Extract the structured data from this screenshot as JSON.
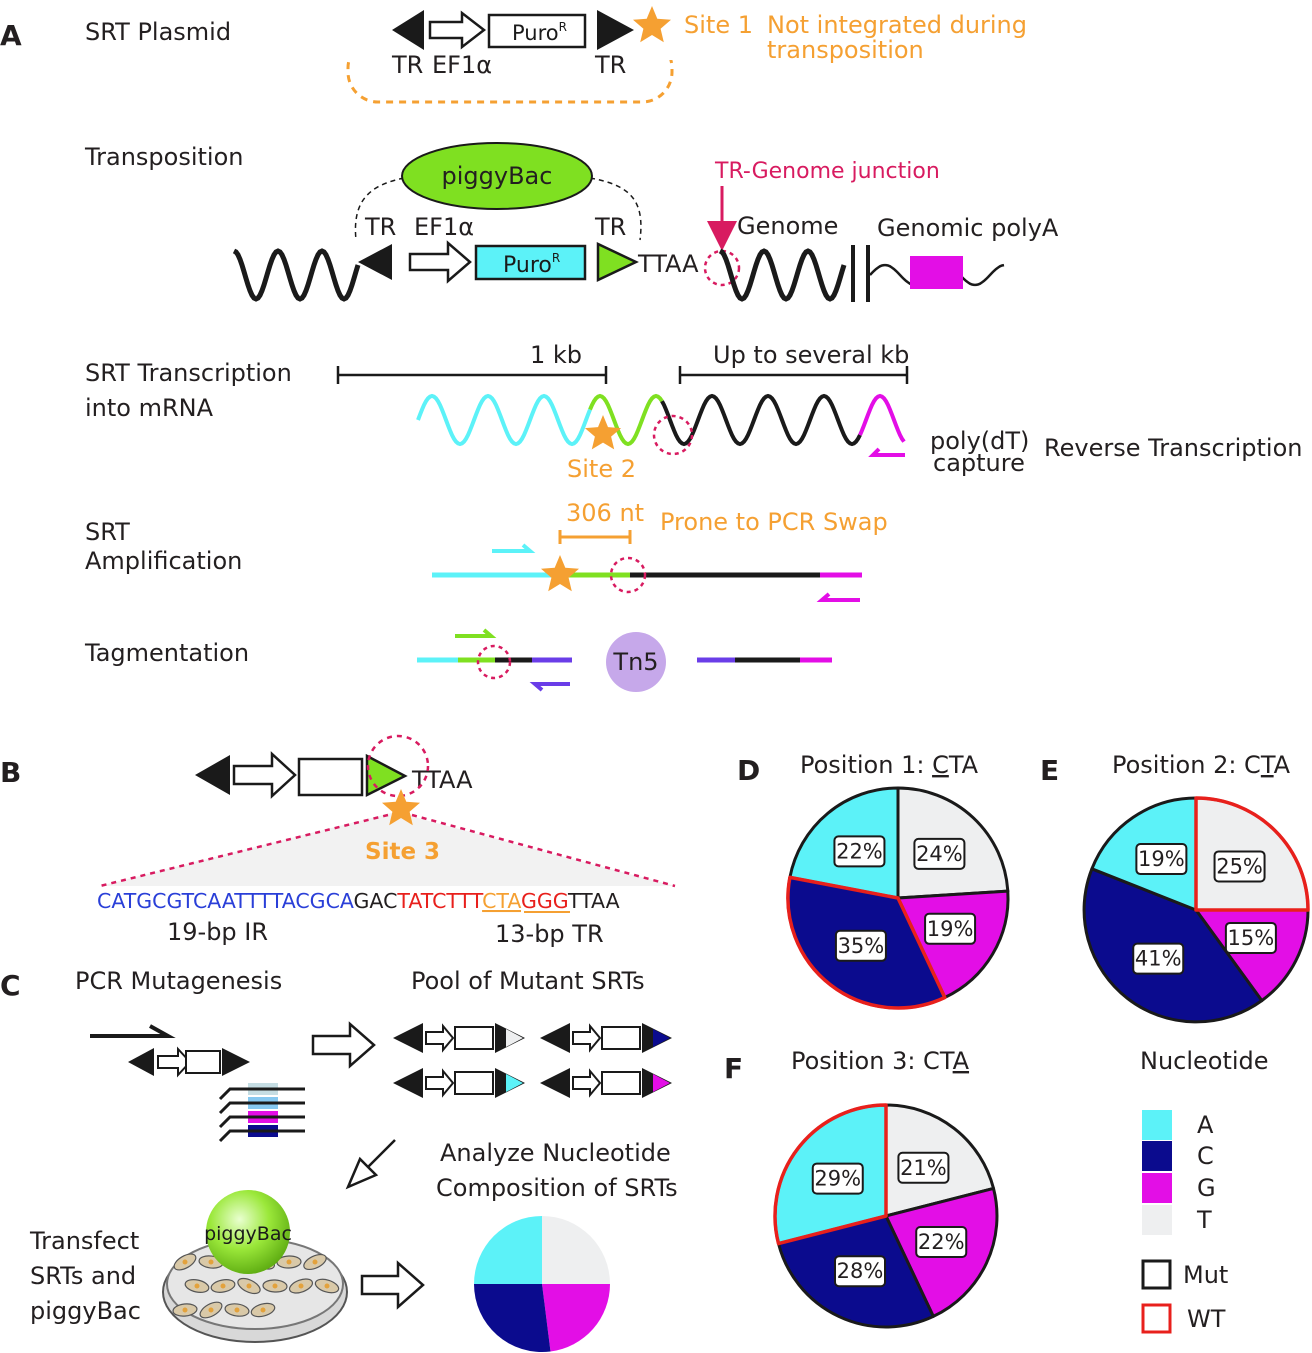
{
  "panels": {
    "a": {
      "letter": "A",
      "rows": {
        "plasmid": "SRT Plasmid",
        "transposition": "Transposition",
        "transcription_1": "SRT Transcription",
        "transcription_2": "into mRNA",
        "amplification_1": "SRT",
        "amplification_2": "Amplification",
        "tagmentation": "Tagmentation"
      },
      "plasmid": {
        "tr_left": "TR",
        "promoter": "EF1α",
        "puro": "Puro",
        "puro_sup": "R",
        "tr_right": "TR",
        "site": "Site 1",
        "note_1": "Not integrated during",
        "note_2": "transposition"
      },
      "transposition": {
        "enzyme": "piggyBac",
        "tr_left": "TR",
        "promoter": "EF1α",
        "puro": "Puro",
        "puro_sup": "R",
        "tr_right": "TR",
        "ttaa": "TTAA",
        "junction": "TR-Genome junction",
        "genome": "Genome",
        "polya": "Genomic polyA"
      },
      "transcription": {
        "scale_1": "1 kb",
        "scale_2": "Up to several kb",
        "site": "Site 2",
        "capture_1": "poly(dT)",
        "capture_2": "capture",
        "rt": "Reverse Transcription"
      },
      "amplification": {
        "length": "306 nt",
        "note": "Prone to PCR Swap"
      },
      "tagmentation": {
        "enzyme": "Tn5"
      }
    },
    "b": {
      "letter": "B",
      "ttaa": "TTAA",
      "site": "Site 3",
      "sequence": {
        "ir": "CATGCGTCAATTTTACGCA",
        "spacer": "GAC",
        "tr_1": "TATCTTT",
        "cta": "CTA",
        "tr_2": "GGG",
        "ttaa": "TTAA"
      },
      "ir_label": "19-bp IR",
      "tr_label": "13-bp TR"
    },
    "c": {
      "letter": "C",
      "mutagenesis": "PCR Mutagenesis",
      "pool": "Pool of Mutant SRTs",
      "analyze_1": "Analyze Nucleotide",
      "analyze_2": "Composition of SRTs",
      "transfect_1": "Transfect",
      "transfect_2": "SRTs and",
      "transfect_3": "piggyBac",
      "ball": "piggyBac"
    }
  },
  "colors": {
    "A": "#5cf2f8",
    "C": "#0b0b8e",
    "G": "#e30ee6",
    "T": "#eeeff0",
    "wt": "#e8201c",
    "mut": "#1a1a1a",
    "site": "#f5a032",
    "junction": "#d81b60",
    "piggybac": "#7fe021",
    "tn5": "#c6a8ea",
    "ir": "#2a3fd8",
    "tr": "#e8201c"
  },
  "chart_data": [
    {
      "type": "pie",
      "letter": "D",
      "title": "Position 1: CTA",
      "title_parts": [
        "Position 1: ",
        "C",
        "TA"
      ],
      "order": "clockwise from top",
      "slices": [
        {
          "label": "T",
          "value": 24,
          "text": "24%"
        },
        {
          "label": "G",
          "value": 19,
          "text": "19%"
        },
        {
          "label": "C",
          "value": 35,
          "text": "35%",
          "wt": true
        },
        {
          "label": "A",
          "value": 22,
          "text": "22%"
        }
      ]
    },
    {
      "type": "pie",
      "letter": "E",
      "title": "Position 2: CTA",
      "title_parts": [
        "Position 2: C",
        "T",
        "A"
      ],
      "order": "clockwise from top",
      "slices": [
        {
          "label": "T",
          "value": 25,
          "text": "25%",
          "wt": true
        },
        {
          "label": "G",
          "value": 15,
          "text": "15%"
        },
        {
          "label": "C",
          "value": 41,
          "text": "41%"
        },
        {
          "label": "A",
          "value": 19,
          "text": "19%"
        }
      ]
    },
    {
      "type": "pie",
      "letter": "F",
      "title": "Position 3: CTA",
      "title_parts": [
        "Position 3: CT",
        "A",
        ""
      ],
      "order": "clockwise from top",
      "slices": [
        {
          "label": "T",
          "value": 21,
          "text": "21%"
        },
        {
          "label": "G",
          "value": 22,
          "text": "22%"
        },
        {
          "label": "C",
          "value": 28,
          "text": "28%"
        },
        {
          "label": "A",
          "value": 29,
          "text": "29%",
          "wt": true
        }
      ]
    },
    {
      "type": "pie",
      "title": "",
      "order": "clockwise from top",
      "slices": [
        {
          "label": "T",
          "value": 25
        },
        {
          "label": "G",
          "value": 23
        },
        {
          "label": "C",
          "value": 27
        },
        {
          "label": "A",
          "value": 25
        }
      ]
    }
  ],
  "legend": {
    "title": "Nucleotide",
    "items": [
      {
        "key": "A",
        "label": "A"
      },
      {
        "key": "C",
        "label": "C"
      },
      {
        "key": "G",
        "label": "G"
      },
      {
        "key": "T",
        "label": "T"
      }
    ],
    "outline_mut": "Mut",
    "outline_wt": "WT"
  }
}
